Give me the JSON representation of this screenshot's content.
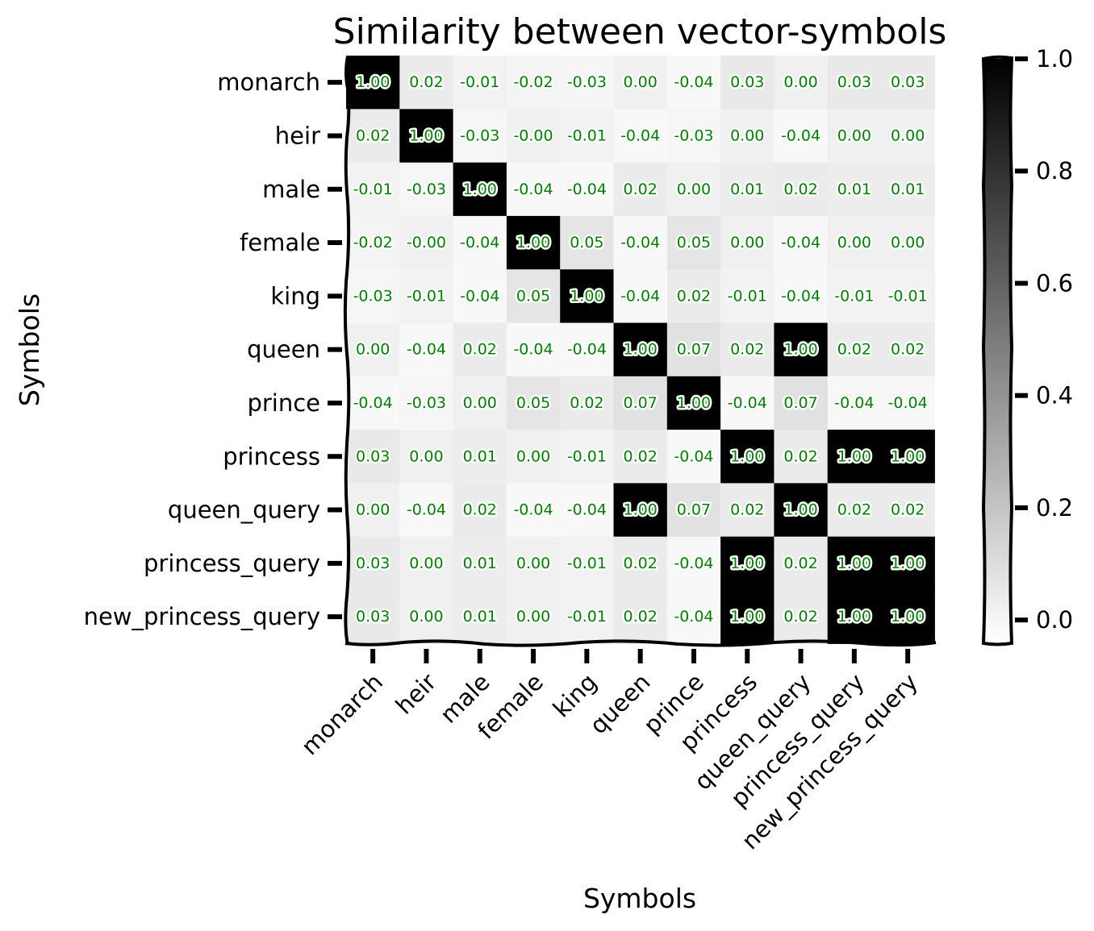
{
  "chart_data": {
    "type": "heatmap",
    "title": "Similarity between vector-symbols",
    "xlabel": "Symbols",
    "ylabel": "Symbols",
    "categories": [
      "monarch",
      "heir",
      "male",
      "female",
      "king",
      "queen",
      "prince",
      "princess",
      "queen_query",
      "princess_query",
      "new_princess_query"
    ],
    "values": [
      [
        1.0,
        0.02,
        -0.01,
        -0.02,
        -0.03,
        0.0,
        -0.04,
        0.03,
        0.0,
        0.03,
        0.03
      ],
      [
        0.02,
        1.0,
        -0.03,
        -0.0,
        -0.01,
        -0.04,
        -0.03,
        0.0,
        -0.04,
        0.0,
        0.0
      ],
      [
        -0.01,
        -0.03,
        1.0,
        -0.04,
        -0.04,
        0.02,
        0.0,
        0.01,
        0.02,
        0.01,
        0.01
      ],
      [
        -0.02,
        -0.0,
        -0.04,
        1.0,
        0.05,
        -0.04,
        0.05,
        0.0,
        -0.04,
        0.0,
        0.0
      ],
      [
        -0.03,
        -0.01,
        -0.04,
        0.05,
        1.0,
        -0.04,
        0.02,
        -0.01,
        -0.04,
        -0.01,
        -0.01
      ],
      [
        0.0,
        -0.04,
        0.02,
        -0.04,
        -0.04,
        1.0,
        0.07,
        0.02,
        1.0,
        0.02,
        0.02
      ],
      [
        -0.04,
        -0.03,
        0.0,
        0.05,
        0.02,
        0.07,
        1.0,
        -0.04,
        0.07,
        -0.04,
        -0.04
      ],
      [
        0.03,
        0.0,
        0.01,
        0.0,
        -0.01,
        0.02,
        -0.04,
        1.0,
        0.02,
        1.0,
        1.0
      ],
      [
        0.0,
        -0.04,
        0.02,
        -0.04,
        -0.04,
        1.0,
        0.07,
        0.02,
        1.0,
        0.02,
        0.02
      ],
      [
        0.03,
        0.0,
        0.01,
        0.0,
        -0.01,
        0.02,
        -0.04,
        1.0,
        0.02,
        1.0,
        1.0
      ],
      [
        0.03,
        0.0,
        0.01,
        0.0,
        -0.01,
        0.02,
        -0.04,
        1.0,
        0.02,
        1.0,
        1.0
      ]
    ],
    "cell_labels": [
      [
        "1.00",
        "0.02",
        "-0.01",
        "-0.02",
        "-0.03",
        "0.00",
        "-0.04",
        "0.03",
        "0.00",
        "0.03",
        "0.03"
      ],
      [
        "0.02",
        "1.00",
        "-0.03",
        "-0.00",
        "-0.01",
        "-0.04",
        "-0.03",
        "0.00",
        "-0.04",
        "0.00",
        "0.00"
      ],
      [
        "-0.01",
        "-0.03",
        "1.00",
        "-0.04",
        "-0.04",
        "0.02",
        "0.00",
        "0.01",
        "0.02",
        "0.01",
        "0.01"
      ],
      [
        "-0.02",
        "-0.00",
        "-0.04",
        "1.00",
        "0.05",
        "-0.04",
        "0.05",
        "0.00",
        "-0.04",
        "0.00",
        "0.00"
      ],
      [
        "-0.03",
        "-0.01",
        "-0.04",
        "0.05",
        "1.00",
        "-0.04",
        "0.02",
        "-0.01",
        "-0.04",
        "-0.01",
        "-0.01"
      ],
      [
        "0.00",
        "-0.04",
        "0.02",
        "-0.04",
        "-0.04",
        "1.00",
        "0.07",
        "0.02",
        "1.00",
        "0.02",
        "0.02"
      ],
      [
        "-0.04",
        "-0.03",
        "0.00",
        "0.05",
        "0.02",
        "0.07",
        "1.00",
        "-0.04",
        "0.07",
        "-0.04",
        "-0.04"
      ],
      [
        "0.03",
        "0.00",
        "0.01",
        "0.00",
        "-0.01",
        "0.02",
        "-0.04",
        "1.00",
        "0.02",
        "1.00",
        "1.00"
      ],
      [
        "0.00",
        "-0.04",
        "0.02",
        "-0.04",
        "-0.04",
        "1.00",
        "0.07",
        "0.02",
        "1.00",
        "0.02",
        "0.02"
      ],
      [
        "0.03",
        "0.00",
        "0.01",
        "0.00",
        "-0.01",
        "0.02",
        "-0.04",
        "1.00",
        "0.02",
        "1.00",
        "1.00"
      ],
      [
        "0.03",
        "0.00",
        "0.01",
        "0.00",
        "-0.01",
        "0.02",
        "-0.04",
        "1.00",
        "0.02",
        "1.00",
        "1.00"
      ]
    ],
    "colorbar": {
      "range": [
        -0.04,
        1.0
      ],
      "ticks": [
        0.0,
        0.2,
        0.4,
        0.6,
        0.8,
        1.0
      ],
      "tick_labels": [
        "0.0",
        "0.2",
        "0.4",
        "0.6",
        "0.8",
        "1.0"
      ],
      "colormap": "greys (white to black)"
    },
    "colors": {
      "annotation": "#008000",
      "annotation_outline": "#ffffff",
      "low": "#ffffff",
      "high": "#000000"
    }
  }
}
